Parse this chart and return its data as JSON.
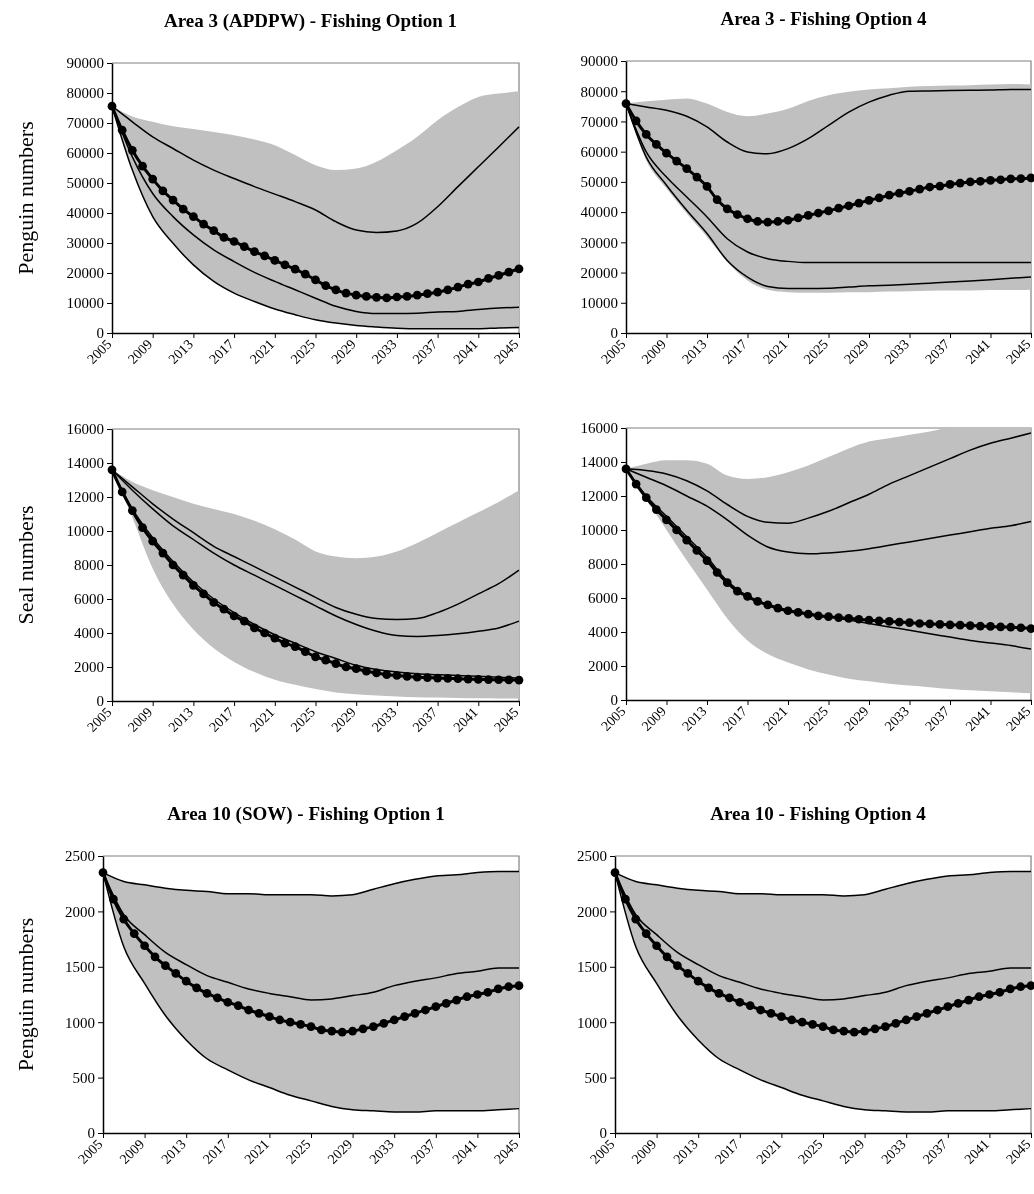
{
  "chart_data": [
    {
      "type": "line",
      "title": "Area 3 (APDPW) - Fishing Option 1",
      "ylabel": "Penguin numbers",
      "xlim": [
        2005,
        2045
      ],
      "xticks": [
        2005,
        2009,
        2013,
        2017,
        2021,
        2025,
        2029,
        2033,
        2037,
        2041,
        2045
      ],
      "ylim": [
        0,
        90000
      ],
      "yticks": [
        0,
        10000,
        20000,
        30000,
        40000,
        50000,
        60000,
        70000,
        80000,
        90000
      ],
      "series": [
        {
          "color": "#000000",
          "marker": "none",
          "x": [
            2005,
            2007,
            2009,
            2011,
            2013,
            2015,
            2017,
            2019,
            2021,
            2023,
            2025,
            2027,
            2029,
            2031,
            2033,
            2035,
            2037,
            2039,
            2041,
            2043,
            2045
          ],
          "values": [
            75600,
            70400,
            65400,
            61500,
            57600,
            54300,
            51500,
            48800,
            46300,
            43800,
            41000,
            37100,
            34300,
            33500,
            34000,
            36600,
            42100,
            48800,
            55400,
            62000,
            68700
          ],
          "lower": [
            75600,
            54300,
            38800,
            29900,
            22700,
            17200,
            13300,
            10500,
            8000,
            6100,
            4400,
            3300,
            2500,
            2000,
            1600,
            1400,
            1400,
            1400,
            1400,
            1700,
            1800
          ],
          "upper": [
            75600,
            72200,
            70400,
            68900,
            68000,
            67000,
            65900,
            64500,
            62600,
            59300,
            55900,
            54300,
            54800,
            57100,
            60900,
            65400,
            70900,
            75300,
            78700,
            79800,
            80600
          ]
        },
        {
          "color": "#000000",
          "marker": "none",
          "x": [
            2005,
            2007,
            2009,
            2011,
            2013,
            2015,
            2017,
            2019,
            2021,
            2023,
            2025,
            2027,
            2029,
            2031,
            2033,
            2035,
            2037,
            2039,
            2041,
            2043,
            2045
          ],
          "values": [
            75600,
            58700,
            46500,
            38800,
            32700,
            27700,
            23800,
            20200,
            17200,
            14400,
            11600,
            8900,
            7200,
            6500,
            6500,
            6600,
            7000,
            7200,
            7800,
            8300,
            8600
          ]
        },
        {
          "color": "#000000",
          "marker": "none",
          "x": [
            2005,
            2007,
            2009,
            2011,
            2013,
            2015,
            2017,
            2019,
            2021,
            2023,
            2025,
            2027,
            2029,
            2031,
            2033,
            2035,
            2037,
            2039,
            2041,
            2043,
            2045
          ],
          "values": [
            75600,
            54300,
            38800,
            29900,
            22700,
            17200,
            13300,
            10500,
            8000,
            6100,
            4400,
            3300,
            2500,
            2000,
            1600,
            1400,
            1400,
            1400,
            1400,
            1700,
            1800
          ]
        },
        {
          "color": "#000000",
          "marker": "circle",
          "x": [
            2005,
            2006,
            2007,
            2008,
            2009,
            2010,
            2011,
            2012,
            2013,
            2014,
            2015,
            2016,
            2017,
            2018,
            2019,
            2020,
            2021,
            2022,
            2023,
            2024,
            2025,
            2026,
            2027,
            2028,
            2029,
            2030,
            2031,
            2032,
            2033,
            2034,
            2035,
            2036,
            2037,
            2038,
            2039,
            2040,
            2041,
            2042,
            2043,
            2044,
            2045
          ],
          "values": [
            75600,
            67600,
            60900,
            55600,
            51300,
            47400,
            44300,
            41300,
            38800,
            36300,
            34100,
            31900,
            30500,
            28800,
            27100,
            25700,
            24200,
            22700,
            21300,
            19600,
            17700,
            15800,
            14400,
            13300,
            12600,
            12200,
            11900,
            11700,
            12000,
            12200,
            12600,
            13100,
            13600,
            14400,
            15300,
            16300,
            17000,
            18200,
            19200,
            20300,
            21400
          ]
        }
      ]
    },
    {
      "type": "line",
      "title": "Area 3 - Fishing Option 4",
      "xlim": [
        2005,
        2045
      ],
      "xticks": [
        2005,
        2009,
        2013,
        2017,
        2021,
        2025,
        2029,
        2033,
        2037,
        2041,
        2045
      ],
      "ylim": [
        0,
        90000
      ],
      "yticks": [
        0,
        10000,
        20000,
        30000,
        40000,
        50000,
        60000,
        70000,
        80000,
        90000
      ],
      "series": [
        {
          "color": "#000000",
          "marker": "none",
          "x": [
            2005,
            2007,
            2009,
            2011,
            2013,
            2015,
            2017,
            2019,
            2021,
            2023,
            2025,
            2027,
            2029,
            2031,
            2033,
            2035,
            2037,
            2039,
            2041,
            2043,
            2045
          ],
          "values": [
            75900,
            74800,
            73700,
            71700,
            68200,
            63200,
            59900,
            59300,
            61000,
            64300,
            68700,
            73100,
            76400,
            78700,
            80000,
            80100,
            80200,
            80300,
            80400,
            80600,
            80600
          ],
          "lower": [
            75900,
            57100,
            47800,
            39500,
            31800,
            23500,
            17400,
            14300,
            13500,
            13300,
            13300,
            13500,
            13500,
            13700,
            13800,
            14000,
            14100,
            14100,
            14200,
            14200,
            14300
          ],
          "upper": [
            75900,
            76700,
            77200,
            77600,
            75900,
            73100,
            71700,
            72600,
            74200,
            76800,
            78700,
            79800,
            80600,
            81000,
            81500,
            81700,
            81900,
            82000,
            82200,
            82400,
            82200
          ]
        },
        {
          "color": "#000000",
          "marker": "none",
          "x": [
            2005,
            2007,
            2009,
            2011,
            2013,
            2015,
            2017,
            2019,
            2021,
            2023,
            2025,
            2027,
            2029,
            2031,
            2033,
            2035,
            2037,
            2039,
            2041,
            2043,
            2045
          ],
          "values": [
            75900,
            59900,
            51600,
            45000,
            38400,
            31200,
            26800,
            24600,
            23700,
            23300,
            23300,
            23300,
            23300,
            23300,
            23300,
            23300,
            23300,
            23300,
            23300,
            23300,
            23300
          ]
        },
        {
          "color": "#000000",
          "marker": "none",
          "x": [
            2005,
            2007,
            2009,
            2011,
            2013,
            2015,
            2017,
            2019,
            2021,
            2023,
            2025,
            2027,
            2029,
            2031,
            2033,
            2035,
            2037,
            2039,
            2041,
            2043,
            2045
          ],
          "values": [
            75900,
            58200,
            48900,
            40600,
            32900,
            24000,
            18500,
            15400,
            14700,
            14700,
            14800,
            15200,
            15600,
            15800,
            16100,
            16500,
            16900,
            17200,
            17600,
            18100,
            18500
          ]
        },
        {
          "color": "#000000",
          "marker": "circle",
          "x": [
            2005,
            2006,
            2007,
            2008,
            2009,
            2010,
            2011,
            2012,
            2013,
            2014,
            2015,
            2016,
            2017,
            2018,
            2019,
            2020,
            2021,
            2022,
            2023,
            2024,
            2025,
            2026,
            2027,
            2028,
            2029,
            2030,
            2031,
            2032,
            2033,
            2034,
            2035,
            2036,
            2037,
            2038,
            2039,
            2040,
            2041,
            2042,
            2043,
            2044,
            2045
          ],
          "values": [
            75900,
            70200,
            65700,
            62400,
            59500,
            56900,
            54400,
            51600,
            48500,
            44100,
            41100,
            39200,
            37800,
            36900,
            36700,
            36900,
            37300,
            38100,
            38900,
            39700,
            40400,
            41300,
            42100,
            43000,
            43900,
            44700,
            45600,
            46300,
            46900,
            47600,
            48300,
            48600,
            49200,
            49600,
            50000,
            50200,
            50500,
            50700,
            51000,
            51100,
            51300
          ]
        }
      ]
    },
    {
      "type": "line",
      "ylabel": "Seal numbers",
      "xlim": [
        2005,
        2045
      ],
      "xticks": [
        2005,
        2009,
        2013,
        2017,
        2021,
        2025,
        2029,
        2033,
        2037,
        2041,
        2045
      ],
      "ylim": [
        0,
        16000
      ],
      "yticks": [
        0,
        2000,
        4000,
        6000,
        8000,
        10000,
        12000,
        14000,
        16000
      ],
      "series": [
        {
          "color": "#000000",
          "marker": "none",
          "x": [
            2005,
            2007,
            2009,
            2011,
            2013,
            2015,
            2017,
            2019,
            2021,
            2023,
            2025,
            2027,
            2029,
            2031,
            2033,
            2035,
            2037,
            2039,
            2041,
            2043,
            2045
          ],
          "values": [
            13600,
            12600,
            11600,
            10700,
            9900,
            9100,
            8500,
            7900,
            7300,
            6700,
            6100,
            5500,
            5100,
            4850,
            4800,
            4850,
            5200,
            5700,
            6300,
            6900,
            7700
          ],
          "lower": [
            13600,
            10800,
            7800,
            5700,
            4200,
            3100,
            2300,
            1700,
            1250,
            950,
            700,
            500,
            400,
            330,
            270,
            220,
            200,
            180,
            160,
            150,
            140
          ],
          "upper": [
            13600,
            12900,
            12400,
            12000,
            11600,
            11300,
            11000,
            10600,
            10100,
            9500,
            8800,
            8500,
            8400,
            8500,
            8800,
            9300,
            9900,
            10500,
            11100,
            11700,
            12400
          ]
        },
        {
          "color": "#000000",
          "marker": "none",
          "x": [
            2005,
            2007,
            2009,
            2011,
            2013,
            2015,
            2017,
            2019,
            2021,
            2023,
            2025,
            2027,
            2029,
            2031,
            2033,
            2035,
            2037,
            2039,
            2041,
            2043,
            2045
          ],
          "values": [
            13600,
            12400,
            11300,
            10300,
            9500,
            8700,
            8000,
            7400,
            6800,
            6200,
            5600,
            5000,
            4500,
            4100,
            3850,
            3800,
            3850,
            3950,
            4100,
            4300,
            4700
          ]
        },
        {
          "color": "#000000",
          "marker": "none",
          "x": [
            2005,
            2007,
            2009,
            2011,
            2013,
            2015,
            2017,
            2019,
            2021,
            2023,
            2025,
            2027,
            2029,
            2031,
            2033,
            2035,
            2037,
            2039,
            2041,
            2043,
            2045
          ],
          "values": [
            13600,
            11300,
            9600,
            8200,
            7000,
            6000,
            5200,
            4500,
            3900,
            3400,
            2900,
            2500,
            2100,
            1850,
            1700,
            1600,
            1550,
            1500,
            1450,
            1400,
            1350
          ]
        },
        {
          "color": "#000000",
          "marker": "circle",
          "x": [
            2005,
            2006,
            2007,
            2008,
            2009,
            2010,
            2011,
            2012,
            2013,
            2014,
            2015,
            2016,
            2017,
            2018,
            2019,
            2020,
            2021,
            2022,
            2023,
            2024,
            2025,
            2026,
            2027,
            2028,
            2029,
            2030,
            2031,
            2032,
            2033,
            2034,
            2035,
            2036,
            2037,
            2038,
            2039,
            2040,
            2041,
            2042,
            2043,
            2044,
            2045
          ],
          "values": [
            13600,
            12300,
            11200,
            10200,
            9400,
            8700,
            8000,
            7400,
            6800,
            6300,
            5800,
            5400,
            5000,
            4700,
            4300,
            4000,
            3700,
            3400,
            3200,
            2900,
            2600,
            2400,
            2200,
            2000,
            1900,
            1750,
            1650,
            1550,
            1500,
            1450,
            1400,
            1380,
            1350,
            1330,
            1310,
            1290,
            1270,
            1260,
            1250,
            1240,
            1230
          ]
        }
      ]
    },
    {
      "type": "line",
      "xlim": [
        2005,
        2045
      ],
      "xticks": [
        2005,
        2009,
        2013,
        2017,
        2021,
        2025,
        2029,
        2033,
        2037,
        2041,
        2045
      ],
      "ylim": [
        0,
        16000
      ],
      "yticks": [
        0,
        2000,
        4000,
        6000,
        8000,
        10000,
        12000,
        14000,
        16000
      ],
      "series": [
        {
          "color": "#000000",
          "marker": "none",
          "x": [
            2005,
            2007,
            2009,
            2011,
            2013,
            2015,
            2017,
            2019,
            2021,
            2023,
            2025,
            2027,
            2029,
            2031,
            2033,
            2035,
            2037,
            2039,
            2041,
            2043,
            2045
          ],
          "values": [
            13600,
            13500,
            13300,
            12900,
            12300,
            11500,
            10800,
            10450,
            10400,
            10700,
            11100,
            11600,
            12100,
            12700,
            13200,
            13700,
            14200,
            14700,
            15100,
            15400,
            15700
          ],
          "lower": [
            13600,
            11800,
            10000,
            8200,
            6500,
            4800,
            3500,
            2700,
            2200,
            1800,
            1500,
            1250,
            1100,
            950,
            850,
            750,
            650,
            580,
            520,
            460,
            400
          ],
          "upper": [
            13600,
            13900,
            14100,
            14100,
            13900,
            13200,
            13000,
            13100,
            13400,
            13800,
            14300,
            14800,
            15200,
            15400,
            15600,
            15800,
            16000,
            16000,
            16000,
            16000,
            16000
          ]
        },
        {
          "color": "#000000",
          "marker": "none",
          "x": [
            2005,
            2007,
            2009,
            2011,
            2013,
            2015,
            2017,
            2019,
            2021,
            2023,
            2025,
            2027,
            2029,
            2031,
            2033,
            2035,
            2037,
            2039,
            2041,
            2043,
            2045
          ],
          "values": [
            13600,
            13100,
            12600,
            12000,
            11400,
            10600,
            9700,
            9000,
            8700,
            8600,
            8650,
            8750,
            8900,
            9100,
            9300,
            9500,
            9700,
            9900,
            10100,
            10250,
            10500
          ]
        },
        {
          "color": "#000000",
          "marker": "none",
          "x": [
            2005,
            2007,
            2009,
            2011,
            2013,
            2015,
            2017,
            2019,
            2021,
            2023,
            2025,
            2027,
            2029,
            2031,
            2033,
            2035,
            2037,
            2039,
            2041,
            2043,
            2045
          ],
          "values": [
            13600,
            12000,
            10800,
            9600,
            8400,
            7000,
            6100,
            5600,
            5300,
            5100,
            4900,
            4700,
            4500,
            4300,
            4100,
            3900,
            3700,
            3500,
            3350,
            3200,
            3000
          ]
        },
        {
          "color": "#000000",
          "marker": "circle",
          "x": [
            2005,
            2006,
            2007,
            2008,
            2009,
            2010,
            2011,
            2012,
            2013,
            2014,
            2015,
            2016,
            2017,
            2018,
            2019,
            2020,
            2021,
            2022,
            2023,
            2024,
            2025,
            2026,
            2027,
            2028,
            2029,
            2030,
            2031,
            2032,
            2033,
            2034,
            2035,
            2036,
            2037,
            2038,
            2039,
            2040,
            2041,
            2042,
            2043,
            2044,
            2045
          ],
          "values": [
            13600,
            12700,
            11900,
            11200,
            10600,
            10000,
            9400,
            8800,
            8200,
            7500,
            6900,
            6400,
            6100,
            5800,
            5600,
            5400,
            5250,
            5150,
            5050,
            4950,
            4900,
            4850,
            4800,
            4750,
            4700,
            4650,
            4620,
            4580,
            4550,
            4500,
            4480,
            4450,
            4420,
            4400,
            4380,
            4350,
            4330,
            4300,
            4280,
            4250,
            4200
          ]
        }
      ]
    },
    {
      "type": "line",
      "title": "Area 10 (SOW) - Fishing Option 1",
      "ylabel": "Penguin numbers",
      "xlim": [
        2005,
        2045
      ],
      "xticks": [
        2005,
        2009,
        2013,
        2017,
        2021,
        2025,
        2029,
        2033,
        2037,
        2041,
        2045
      ],
      "ylim": [
        0,
        2500
      ],
      "yticks": [
        0,
        500,
        1000,
        1500,
        2000,
        2500
      ],
      "series": [
        {
          "color": "#000000",
          "marker": "none",
          "x": [
            2005,
            2007,
            2009,
            2011,
            2013,
            2015,
            2017,
            2019,
            2021,
            2023,
            2025,
            2027,
            2029,
            2031,
            2033,
            2035,
            2037,
            2039,
            2041,
            2043,
            2045
          ],
          "values": [
            2350,
            2270,
            2240,
            2210,
            2190,
            2180,
            2160,
            2160,
            2150,
            2150,
            2150,
            2140,
            2150,
            2200,
            2250,
            2290,
            2320,
            2330,
            2350,
            2360,
            2360
          ],
          "lower": [
            2350,
            1680,
            1350,
            1060,
            840,
            670,
            570,
            480,
            410,
            340,
            290,
            240,
            210,
            200,
            190,
            190,
            200,
            200,
            200,
            210,
            220
          ],
          "upper": [
            2350,
            2270,
            2240,
            2210,
            2190,
            2180,
            2160,
            2160,
            2150,
            2150,
            2150,
            2140,
            2150,
            2200,
            2250,
            2290,
            2320,
            2330,
            2350,
            2360,
            2360
          ]
        },
        {
          "color": "#000000",
          "marker": "none",
          "x": [
            2005,
            2007,
            2009,
            2011,
            2013,
            2015,
            2017,
            2019,
            2021,
            2023,
            2025,
            2027,
            2029,
            2031,
            2033,
            2035,
            2037,
            2039,
            2041,
            2043,
            2045
          ],
          "values": [
            2350,
            1970,
            1790,
            1630,
            1520,
            1420,
            1360,
            1300,
            1260,
            1230,
            1200,
            1210,
            1240,
            1270,
            1330,
            1370,
            1400,
            1440,
            1460,
            1490,
            1490
          ]
        },
        {
          "color": "#000000",
          "marker": "none",
          "x": [
            2005,
            2007,
            2009,
            2011,
            2013,
            2015,
            2017,
            2019,
            2021,
            2023,
            2025,
            2027,
            2029,
            2031,
            2033,
            2035,
            2037,
            2039,
            2041,
            2043,
            2045
          ],
          "values": [
            2350,
            1680,
            1350,
            1060,
            840,
            670,
            570,
            480,
            410,
            340,
            290,
            240,
            210,
            200,
            190,
            190,
            200,
            200,
            200,
            210,
            220
          ]
        },
        {
          "color": "#000000",
          "marker": "circle",
          "x": [
            2005,
            2006,
            2007,
            2008,
            2009,
            2010,
            2011,
            2012,
            2013,
            2014,
            2015,
            2016,
            2017,
            2018,
            2019,
            2020,
            2021,
            2022,
            2023,
            2024,
            2025,
            2026,
            2027,
            2028,
            2029,
            2030,
            2031,
            2032,
            2033,
            2034,
            2035,
            2036,
            2037,
            2038,
            2039,
            2040,
            2041,
            2042,
            2043,
            2044,
            2045
          ],
          "values": [
            2350,
            2110,
            1930,
            1800,
            1690,
            1590,
            1510,
            1440,
            1370,
            1310,
            1260,
            1220,
            1180,
            1150,
            1110,
            1080,
            1050,
            1020,
            1000,
            980,
            960,
            930,
            920,
            910,
            920,
            940,
            960,
            990,
            1020,
            1050,
            1080,
            1110,
            1140,
            1170,
            1200,
            1230,
            1250,
            1270,
            1300,
            1320,
            1330
          ]
        }
      ]
    },
    {
      "type": "line",
      "title": "Area 10 - Fishing Option 4",
      "xlim": [
        2005,
        2045
      ],
      "xticks": [
        2005,
        2009,
        2013,
        2017,
        2021,
        2025,
        2029,
        2033,
        2037,
        2041,
        2045
      ],
      "ylim": [
        0,
        2500
      ],
      "yticks": [
        0,
        500,
        1000,
        1500,
        2000,
        2500
      ],
      "series": [
        {
          "color": "#000000",
          "marker": "none",
          "x": [
            2005,
            2007,
            2009,
            2011,
            2013,
            2015,
            2017,
            2019,
            2021,
            2023,
            2025,
            2027,
            2029,
            2031,
            2033,
            2035,
            2037,
            2039,
            2041,
            2043,
            2045
          ],
          "values": [
            2350,
            2270,
            2240,
            2210,
            2190,
            2180,
            2160,
            2160,
            2150,
            2150,
            2150,
            2140,
            2150,
            2200,
            2250,
            2290,
            2320,
            2330,
            2350,
            2360,
            2360
          ],
          "lower": [
            2350,
            1680,
            1350,
            1060,
            840,
            670,
            570,
            480,
            410,
            340,
            290,
            240,
            210,
            200,
            190,
            190,
            200,
            200,
            200,
            210,
            220
          ],
          "upper": [
            2350,
            2270,
            2240,
            2210,
            2190,
            2180,
            2160,
            2160,
            2150,
            2150,
            2150,
            2140,
            2150,
            2200,
            2250,
            2290,
            2320,
            2330,
            2350,
            2360,
            2360
          ]
        },
        {
          "color": "#000000",
          "marker": "none",
          "x": [
            2005,
            2007,
            2009,
            2011,
            2013,
            2015,
            2017,
            2019,
            2021,
            2023,
            2025,
            2027,
            2029,
            2031,
            2033,
            2035,
            2037,
            2039,
            2041,
            2043,
            2045
          ],
          "values": [
            2350,
            1970,
            1790,
            1630,
            1520,
            1420,
            1360,
            1300,
            1260,
            1230,
            1200,
            1210,
            1240,
            1270,
            1330,
            1370,
            1400,
            1440,
            1460,
            1490,
            1490
          ]
        },
        {
          "color": "#000000",
          "marker": "none",
          "x": [
            2005,
            2007,
            2009,
            2011,
            2013,
            2015,
            2017,
            2019,
            2021,
            2023,
            2025,
            2027,
            2029,
            2031,
            2033,
            2035,
            2037,
            2039,
            2041,
            2043,
            2045
          ],
          "values": [
            2350,
            1680,
            1350,
            1060,
            840,
            670,
            570,
            480,
            410,
            340,
            290,
            240,
            210,
            200,
            190,
            190,
            200,
            200,
            200,
            210,
            220
          ]
        },
        {
          "color": "#000000",
          "marker": "circle",
          "x": [
            2005,
            2006,
            2007,
            2008,
            2009,
            2010,
            2011,
            2012,
            2013,
            2014,
            2015,
            2016,
            2017,
            2018,
            2019,
            2020,
            2021,
            2022,
            2023,
            2024,
            2025,
            2026,
            2027,
            2028,
            2029,
            2030,
            2031,
            2032,
            2033,
            2034,
            2035,
            2036,
            2037,
            2038,
            2039,
            2040,
            2041,
            2042,
            2043,
            2044,
            2045
          ],
          "values": [
            2350,
            2110,
            1930,
            1800,
            1690,
            1590,
            1510,
            1440,
            1370,
            1310,
            1260,
            1220,
            1180,
            1150,
            1110,
            1080,
            1050,
            1020,
            1000,
            980,
            960,
            930,
            920,
            910,
            920,
            940,
            960,
            990,
            1020,
            1050,
            1080,
            1110,
            1140,
            1170,
            1200,
            1230,
            1250,
            1270,
            1300,
            1320,
            1330
          ]
        }
      ]
    }
  ]
}
